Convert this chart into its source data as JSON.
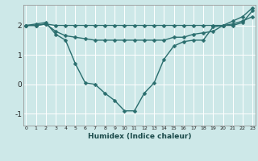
{
  "xlabel": "Humidex (Indice chaleur)",
  "bg_color": "#cde8e8",
  "grid_color": "#ffffff",
  "line_color": "#2a6e6e",
  "line1_x": [
    0,
    1,
    2,
    3,
    4,
    5,
    6,
    7,
    8,
    9,
    10,
    11,
    12,
    13,
    14,
    15,
    16,
    17,
    18,
    19,
    20,
    21,
    22,
    23
  ],
  "line1_y": [
    2.0,
    2.0,
    2.05,
    2.0,
    2.0,
    2.0,
    2.0,
    2.0,
    2.0,
    2.0,
    2.0,
    2.0,
    2.0,
    2.0,
    2.0,
    2.0,
    2.0,
    2.0,
    2.0,
    2.0,
    2.0,
    2.0,
    2.1,
    2.5
  ],
  "line2_x": [
    0,
    1,
    2,
    3,
    4,
    5,
    6,
    7,
    8,
    9,
    10,
    11,
    12,
    13,
    14,
    15,
    16,
    17,
    18,
    19,
    20,
    21,
    22,
    23
  ],
  "line2_y": [
    2.0,
    2.0,
    2.05,
    1.8,
    1.65,
    1.6,
    1.55,
    1.5,
    1.5,
    1.5,
    1.5,
    1.5,
    1.5,
    1.5,
    1.5,
    1.6,
    1.6,
    1.7,
    1.75,
    1.8,
    2.0,
    2.05,
    2.15,
    2.3
  ],
  "line3_x": [
    0,
    1,
    2,
    3,
    4,
    5,
    6,
    7,
    8,
    9,
    10,
    11,
    12,
    13,
    14,
    15,
    16,
    17,
    18,
    19,
    20,
    21,
    22,
    23
  ],
  "line3_y": [
    2.0,
    2.05,
    2.1,
    1.7,
    1.5,
    0.7,
    0.05,
    0.0,
    -0.3,
    -0.55,
    -0.9,
    -0.9,
    -0.3,
    0.05,
    0.85,
    1.3,
    1.45,
    1.5,
    1.5,
    1.95,
    2.0,
    2.15,
    2.3,
    2.6
  ],
  "xlim": [
    0,
    23
  ],
  "ylim": [
    -1.4,
    2.7
  ],
  "xticks": [
    0,
    1,
    2,
    3,
    4,
    5,
    6,
    7,
    8,
    9,
    10,
    11,
    12,
    13,
    14,
    15,
    16,
    17,
    18,
    19,
    20,
    21,
    22,
    23
  ],
  "yticks": [
    -1,
    0,
    1,
    2
  ],
  "markersize": 2.5,
  "linewidth": 1.0
}
